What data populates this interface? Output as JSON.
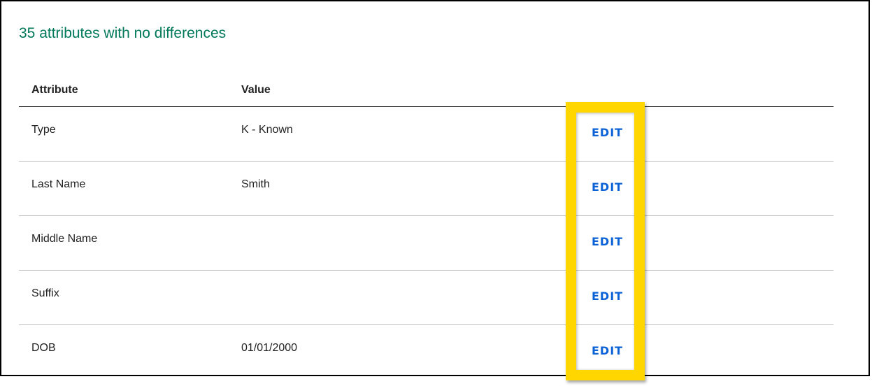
{
  "title": "35 attributes with no differences",
  "columns": {
    "attribute": "Attribute",
    "value": "Value"
  },
  "rows": [
    {
      "attribute": "Type",
      "value": "K - Known",
      "action": "EDIT"
    },
    {
      "attribute": "Last Name",
      "value": "Smith",
      "action": "EDIT"
    },
    {
      "attribute": "Middle Name",
      "value": "",
      "action": "EDIT"
    },
    {
      "attribute": "Suffix",
      "value": "",
      "action": "EDIT"
    },
    {
      "attribute": "DOB",
      "value": "01/01/2000",
      "action": "EDIT"
    }
  ],
  "colors": {
    "title": "#00785a",
    "link": "#0b62d6",
    "highlight": "#ffd600"
  }
}
